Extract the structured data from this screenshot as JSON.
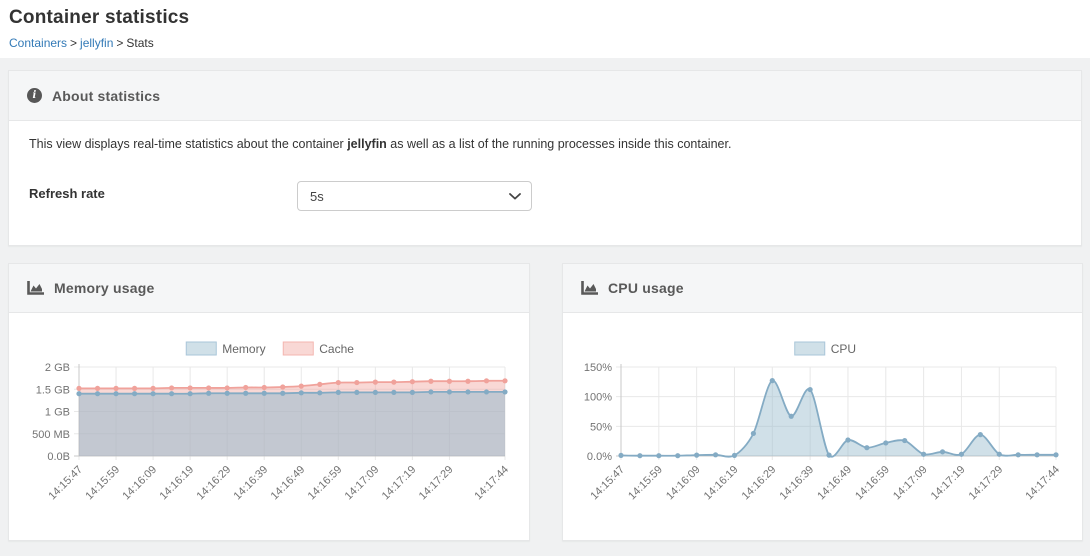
{
  "page": {
    "title": "Container statistics",
    "breadcrumb": {
      "separator": ">",
      "items": [
        {
          "label": "Containers",
          "link": true
        },
        {
          "label": "jellyfin",
          "link": true
        },
        {
          "label": "Stats",
          "link": false
        }
      ]
    }
  },
  "about": {
    "header": "About statistics",
    "description": {
      "before": "This view displays real-time statistics about the container ",
      "bold": "jellyfin",
      "after": " as well as a list of the running processes inside this container."
    },
    "refresh": {
      "label": "Refresh rate",
      "value": "5s"
    }
  },
  "colors": {
    "link": "#337ab7",
    "title_text": "#333333",
    "widget_header_text": "#595959",
    "page_background": "#f0f1f2",
    "widget_header_background": "#f5f6f7",
    "memory_series": "#84abc4",
    "cache_series": "#f0a29b",
    "cpu_series": "#84abc4",
    "grid": "#e8e8e8",
    "axis": "#c9c9c9",
    "tick_text": "#737373"
  },
  "chart_data": [
    {
      "type": "area",
      "title": "Memory usage",
      "xlabel": "",
      "ylabel": "",
      "grid": true,
      "legend_position": "top",
      "y_max": 2,
      "y_ticks": [
        {
          "label": "2 GB",
          "value": 2
        },
        {
          "label": "1.5 GB",
          "value": 1.5
        },
        {
          "label": "1 GB",
          "value": 1
        },
        {
          "label": "500 MB",
          "value": 0.5
        },
        {
          "label": "0.0B",
          "value": 0
        }
      ],
      "n_points": 24,
      "x_tick_positions": [
        0,
        2,
        4,
        6,
        8,
        10,
        12,
        14,
        16,
        18,
        20,
        23
      ],
      "x_tick_labels": [
        "14:15:47",
        "14:15:59",
        "14:16:09",
        "14:16:19",
        "14:16:29",
        "14:16:39",
        "14:16:49",
        "14:16:59",
        "14:17:09",
        "14:17:19",
        "14:17:29",
        "14:17:44"
      ],
      "series": [
        {
          "name": "Memory",
          "stroke": "#84abc4",
          "fill": "rgba(151,187,205,0.55)",
          "legend_fill": "#d0e0e8",
          "legend_stroke": "#a9c6d9",
          "unit": "GB",
          "values": [
            1.4,
            1.4,
            1.4,
            1.4,
            1.4,
            1.4,
            1.4,
            1.41,
            1.41,
            1.41,
            1.41,
            1.41,
            1.42,
            1.42,
            1.43,
            1.43,
            1.43,
            1.43,
            1.43,
            1.44,
            1.44,
            1.44,
            1.44,
            1.44
          ]
        },
        {
          "name": "Cache",
          "stroke": "#f0a29b",
          "fill": "rgba(240,162,155,0.42)",
          "legend_fill": "#f9d8d5",
          "legend_stroke": "#f4b6b0",
          "unit": "GB",
          "values": [
            1.52,
            1.52,
            1.52,
            1.52,
            1.52,
            1.53,
            1.53,
            1.53,
            1.53,
            1.54,
            1.54,
            1.55,
            1.57,
            1.61,
            1.65,
            1.65,
            1.66,
            1.66,
            1.67,
            1.68,
            1.68,
            1.68,
            1.69,
            1.69
          ]
        }
      ]
    },
    {
      "type": "area",
      "title": "CPU usage",
      "xlabel": "",
      "ylabel": "",
      "grid": true,
      "legend_position": "top",
      "y_max": 150,
      "y_ticks": [
        {
          "label": "150%",
          "value": 150
        },
        {
          "label": "100%",
          "value": 100
        },
        {
          "label": "50%",
          "value": 50
        },
        {
          "label": "0.0%",
          "value": 0
        }
      ],
      "n_points": 24,
      "x_tick_positions": [
        0,
        2,
        4,
        6,
        8,
        10,
        12,
        14,
        16,
        18,
        20,
        23
      ],
      "x_tick_labels": [
        "14:15:47",
        "14:15:59",
        "14:16:09",
        "14:16:19",
        "14:16:29",
        "14:16:39",
        "14:16:49",
        "14:16:59",
        "14:17:09",
        "14:17:19",
        "14:17:29",
        "14:17:44"
      ],
      "series": [
        {
          "name": "CPU",
          "stroke": "#84abc4",
          "fill": "rgba(151,187,205,0.45)",
          "legend_fill": "#d0e0e8",
          "legend_stroke": "#a9c6d9",
          "unit": "%",
          "values": [
            1,
            0.5,
            0.5,
            0.5,
            1.5,
            2,
            1,
            38,
            127,
            67,
            112,
            1.5,
            27,
            14,
            22,
            26,
            3,
            7,
            3,
            36,
            3,
            2,
            2,
            2
          ]
        }
      ]
    }
  ]
}
